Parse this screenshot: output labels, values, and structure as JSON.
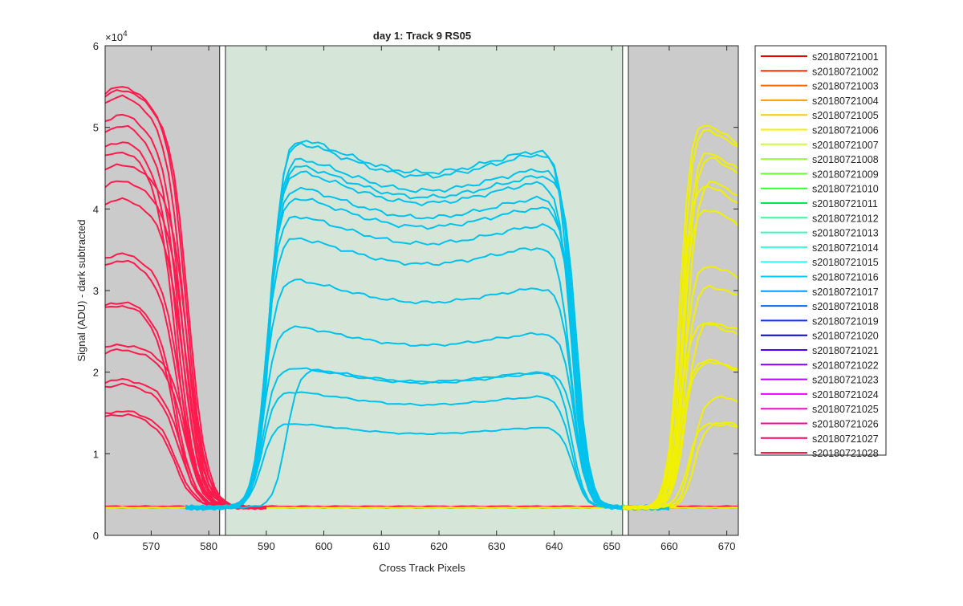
{
  "chart_data": {
    "type": "line",
    "title": "day 1: Track 9  RS05",
    "xlabel": "Cross Track Pixels",
    "ylabel": "Signal (ADU) - dark subtracted",
    "xlim": [
      562,
      672
    ],
    "ylim": [
      0,
      60000
    ],
    "y_exponent_label": "×10",
    "y_exponent_power": "4",
    "x_ticks": [
      570,
      580,
      590,
      600,
      610,
      620,
      630,
      640,
      650,
      660,
      670
    ],
    "y_ticks": [
      0,
      10000,
      20000,
      30000,
      40000,
      50000,
      60000
    ],
    "y_tick_labels": [
      "0",
      "1",
      "2",
      "3",
      "4",
      "5",
      "6"
    ],
    "grid": false,
    "legend_position": "outside-right",
    "regions": [
      {
        "x0": 562,
        "x1": 581.9,
        "color": "#cbcbcb"
      },
      {
        "x0": 582.9,
        "x1": 651.9,
        "color": "#d5e6d8"
      },
      {
        "x0": 652.9,
        "x1": 672,
        "color": "#cbcbcb"
      }
    ],
    "baseline_level": 3400,
    "left_group": {
      "color": "#ff1a4d",
      "plateaus": [
        53800,
        54200,
        53000,
        50800,
        49500,
        47600,
        46400,
        44800,
        42800,
        40600,
        34000,
        33200,
        28200,
        27800,
        23000,
        22400,
        18800,
        18200,
        15000,
        14600
      ],
      "edge_center": 575.6,
      "edge_width": 1.6
    },
    "middle_group": {
      "color": "#00c2ec",
      "plateaus": [
        50000,
        49500,
        47500,
        46600,
        45800,
        43800,
        42500,
        40200,
        37400,
        32100,
        26200,
        21000,
        18000,
        14000
      ],
      "dip_fraction": 0.11,
      "left_edge": 589.2,
      "right_edge": 643.0,
      "edge_width": 1.1,
      "extra_curve": {
        "left_edge": 593.5,
        "value": 21200
      }
    },
    "right_group": {
      "color": "#f0f000",
      "plateaus": [
        51500,
        51000,
        48200,
        47700,
        44800,
        43800,
        41000,
        34000,
        31500,
        27000,
        26500,
        22000,
        21800,
        17700,
        14500,
        14200
      ],
      "edge_center": 661.8,
      "edge_width": 1.0
    },
    "legend": [
      {
        "label": "s20180721001",
        "color": "#e60000"
      },
      {
        "label": "s20180721002",
        "color": "#ff3300"
      },
      {
        "label": "s20180721003",
        "color": "#ff6600"
      },
      {
        "label": "s20180721004",
        "color": "#ff9900"
      },
      {
        "label": "s20180721005",
        "color": "#ffcc00"
      },
      {
        "label": "s20180721006",
        "color": "#f2f200"
      },
      {
        "label": "s20180721007",
        "color": "#ccff33"
      },
      {
        "label": "s20180721008",
        "color": "#99ff33"
      },
      {
        "label": "s20180721009",
        "color": "#66ff33"
      },
      {
        "label": "s20180721010",
        "color": "#33ff33"
      },
      {
        "label": "s20180721011",
        "color": "#00e64d"
      },
      {
        "label": "s20180721012",
        "color": "#33ff99"
      },
      {
        "label": "s20180721013",
        "color": "#33ffbb"
      },
      {
        "label": "s20180721014",
        "color": "#33ffd6"
      },
      {
        "label": "s20180721015",
        "color": "#33ffff"
      },
      {
        "label": "s20180721016",
        "color": "#00ccff"
      },
      {
        "label": "s20180721017",
        "color": "#0099ff"
      },
      {
        "label": "s20180721018",
        "color": "#0066ff"
      },
      {
        "label": "s20180721019",
        "color": "#0033ff"
      },
      {
        "label": "s20180721020",
        "color": "#0000e6"
      },
      {
        "label": "s20180721021",
        "color": "#4d00ff"
      },
      {
        "label": "s20180721022",
        "color": "#8000ff"
      },
      {
        "label": "s20180721023",
        "color": "#b300ff"
      },
      {
        "label": "s20180721024",
        "color": "#e600ff"
      },
      {
        "label": "s20180721025",
        "color": "#ff00cc"
      },
      {
        "label": "s20180721026",
        "color": "#ff0099"
      },
      {
        "label": "s20180721027",
        "color": "#ff0066"
      },
      {
        "label": "s20180721028",
        "color": "#ff0033"
      }
    ]
  }
}
